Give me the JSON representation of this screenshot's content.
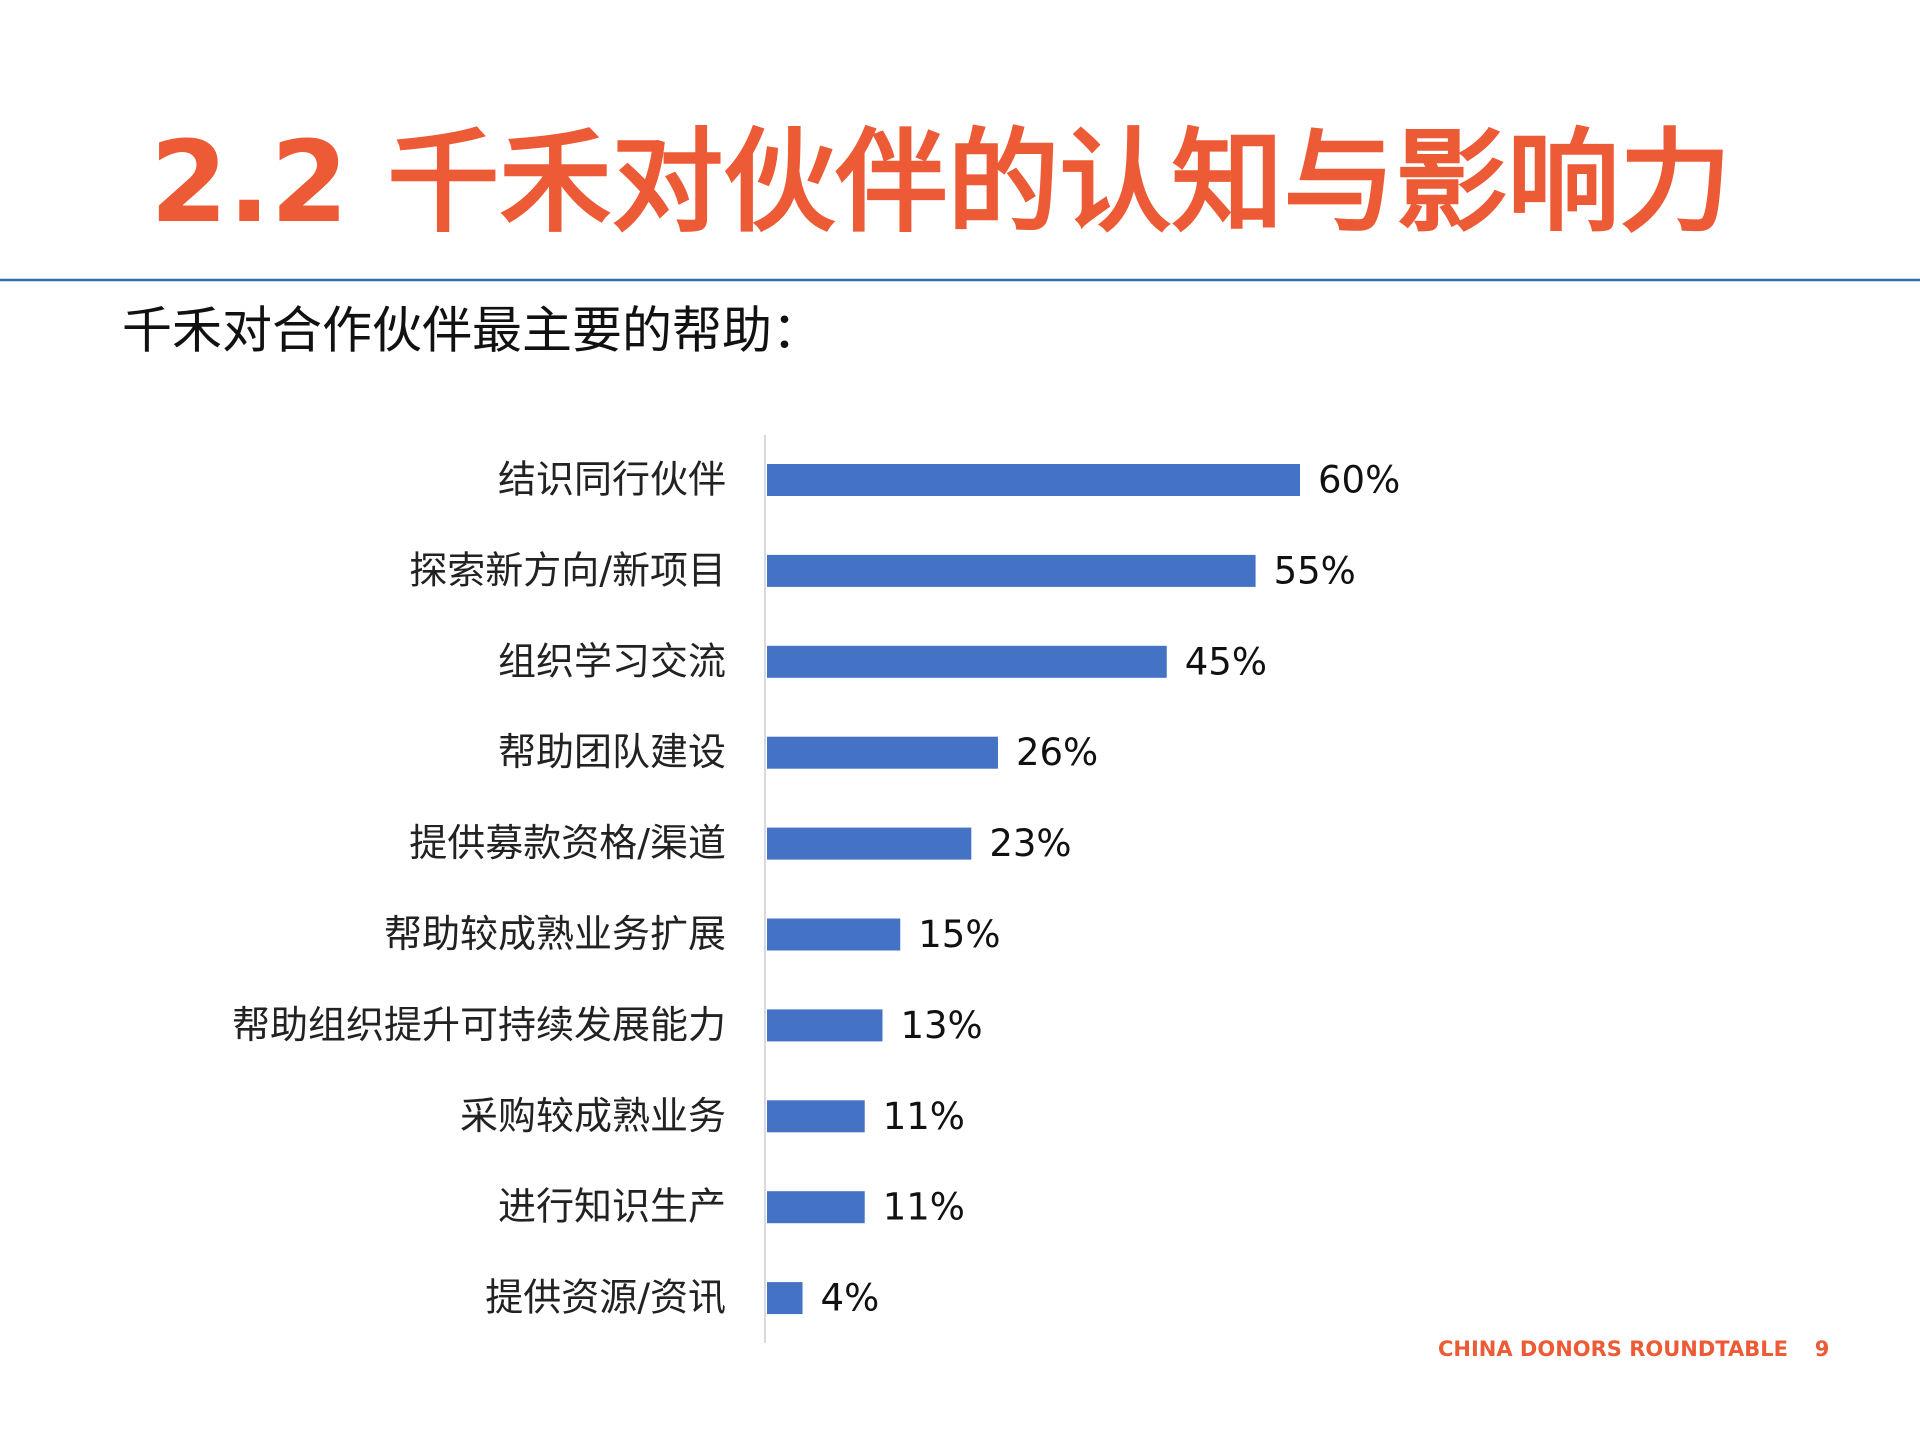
{
  "title": "2.2 千禾对伙伴的认知与影响力",
  "footer": {
    "text": "CHINA DONORS ROUNDTABLE",
    "page": "9"
  },
  "chart_data": {
    "type": "bar",
    "orientation": "horizontal",
    "title": "千禾对合作伙伴最主要的帮助：",
    "categories": [
      "结识同行伙伴",
      "探索新方向/新项目",
      "组织学习交流",
      "帮助团队建设",
      "提供募款资格/渠道",
      "帮助较成熟业务扩展",
      "帮助组织提升可持续发展能力",
      "采购较成熟业务",
      "进行知识生产",
      "提供资源/资讯"
    ],
    "values": [
      60,
      55,
      45,
      26,
      23,
      15,
      13,
      11,
      11,
      4
    ],
    "value_labels": [
      "60%",
      "55%",
      "45%",
      "26%",
      "23%",
      "15%",
      "13%",
      "11%",
      "11%",
      "4%"
    ],
    "color": "#4472c4"
  }
}
